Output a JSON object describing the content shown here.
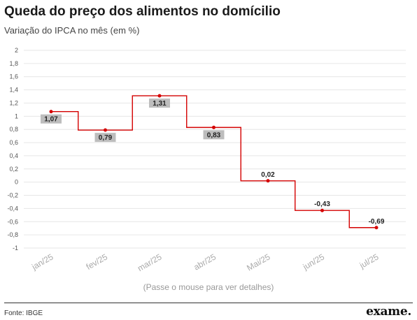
{
  "header": {
    "title": "Queda do preço dos alimentos no domícilio",
    "subtitle": "Variação do IPCA no mês (em %)"
  },
  "hint": "(Passe o mouse para ver detalhes)",
  "footer": {
    "source": "Fonte: IBGE",
    "logo": "exame."
  },
  "colors": {
    "line": "#d40000",
    "label_bg": "#bdbdbd",
    "grid": "#e6e6e6"
  },
  "chart_data": {
    "type": "line",
    "step": true,
    "categories": [
      "jan/25",
      "fev/25",
      "mar/25",
      "abr/25",
      "Mai/25",
      "jun/25",
      "jul/25"
    ],
    "series": [
      {
        "values": [
          1.07,
          0.79,
          1.31,
          0.83,
          0.02,
          -0.43,
          -0.69
        ]
      }
    ],
    "data_labels": [
      "1,07",
      "0,79",
      "1,31",
      "0,83",
      "0,02",
      "-0,43",
      "-0,69"
    ],
    "y_ticks": [
      2,
      1.8,
      1.6,
      1.4,
      1.2,
      1,
      0.8,
      0.6,
      0.4,
      0.2,
      0,
      -0.2,
      -0.4,
      -0.6,
      -0.8,
      -1
    ],
    "y_tick_labels": [
      "2",
      "1,8",
      "1,6",
      "1,4",
      "1,2",
      "1",
      "0,8",
      "0,6",
      "0,4",
      "0,2",
      "0",
      "-0,2",
      "-0,4",
      "-0,6",
      "-0,8",
      "-1"
    ],
    "ylim": [
      -1,
      2
    ],
    "grid": true,
    "title": "Queda do preço dos alimentos no domícilio",
    "xlabel": "",
    "ylabel": ""
  }
}
